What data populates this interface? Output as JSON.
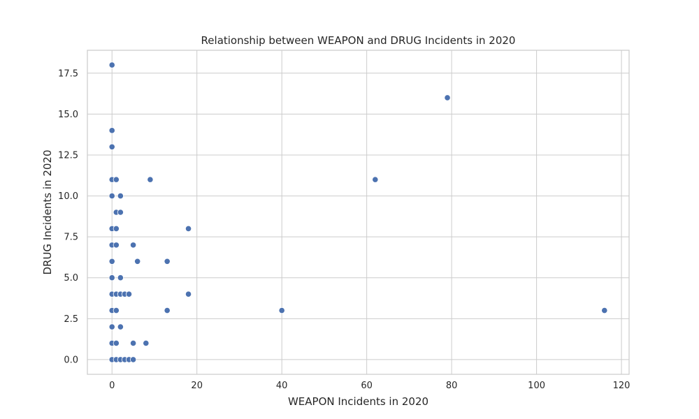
{
  "chart_data": {
    "type": "scatter",
    "title": "Relationship between WEAPON and DRUG Incidents in 2020",
    "xlabel": "WEAPON Incidents in 2020",
    "ylabel": "DRUG Incidents in 2020",
    "xlim": [
      -5.8,
      121.8
    ],
    "ylim": [
      -0.9,
      18.9
    ],
    "x_ticks": [
      0,
      20,
      40,
      60,
      80,
      100,
      120
    ],
    "x_tick_labels": [
      "0",
      "20",
      "40",
      "60",
      "80",
      "100",
      "120"
    ],
    "y_ticks": [
      0,
      2.5,
      5,
      7.5,
      10,
      12.5,
      15,
      17.5
    ],
    "y_tick_labels": [
      "0.0",
      "2.5",
      "5.0",
      "7.5",
      "10.0",
      "12.5",
      "15.0",
      "17.5"
    ],
    "grid": true,
    "marker_color": "#4c72b0",
    "points": [
      {
        "x": 0,
        "y": 18
      },
      {
        "x": 0,
        "y": 14
      },
      {
        "x": 0,
        "y": 13
      },
      {
        "x": 0,
        "y": 11
      },
      {
        "x": 0,
        "y": 10
      },
      {
        "x": 0,
        "y": 8
      },
      {
        "x": 0,
        "y": 7
      },
      {
        "x": 0,
        "y": 6
      },
      {
        "x": 0,
        "y": 5
      },
      {
        "x": 0,
        "y": 4
      },
      {
        "x": 0,
        "y": 3
      },
      {
        "x": 0,
        "y": 2
      },
      {
        "x": 0,
        "y": 1
      },
      {
        "x": 0,
        "y": 0
      },
      {
        "x": 1,
        "y": 11
      },
      {
        "x": 1,
        "y": 9
      },
      {
        "x": 1,
        "y": 8
      },
      {
        "x": 1,
        "y": 7
      },
      {
        "x": 1,
        "y": 4
      },
      {
        "x": 1,
        "y": 3
      },
      {
        "x": 1,
        "y": 1
      },
      {
        "x": 1,
        "y": 0
      },
      {
        "x": 2,
        "y": 10
      },
      {
        "x": 2,
        "y": 9
      },
      {
        "x": 2,
        "y": 5
      },
      {
        "x": 2,
        "y": 4
      },
      {
        "x": 2,
        "y": 2
      },
      {
        "x": 2,
        "y": 0
      },
      {
        "x": 3,
        "y": 4
      },
      {
        "x": 3,
        "y": 0
      },
      {
        "x": 4,
        "y": 4
      },
      {
        "x": 4,
        "y": 0
      },
      {
        "x": 5,
        "y": 7
      },
      {
        "x": 5,
        "y": 1
      },
      {
        "x": 5,
        "y": 0
      },
      {
        "x": 6,
        "y": 6
      },
      {
        "x": 8,
        "y": 1
      },
      {
        "x": 9,
        "y": 11
      },
      {
        "x": 13,
        "y": 6
      },
      {
        "x": 13,
        "y": 3
      },
      {
        "x": 18,
        "y": 8
      },
      {
        "x": 18,
        "y": 4
      },
      {
        "x": 40,
        "y": 3
      },
      {
        "x": 62,
        "y": 11
      },
      {
        "x": 79,
        "y": 16
      },
      {
        "x": 116,
        "y": 3
      }
    ]
  }
}
